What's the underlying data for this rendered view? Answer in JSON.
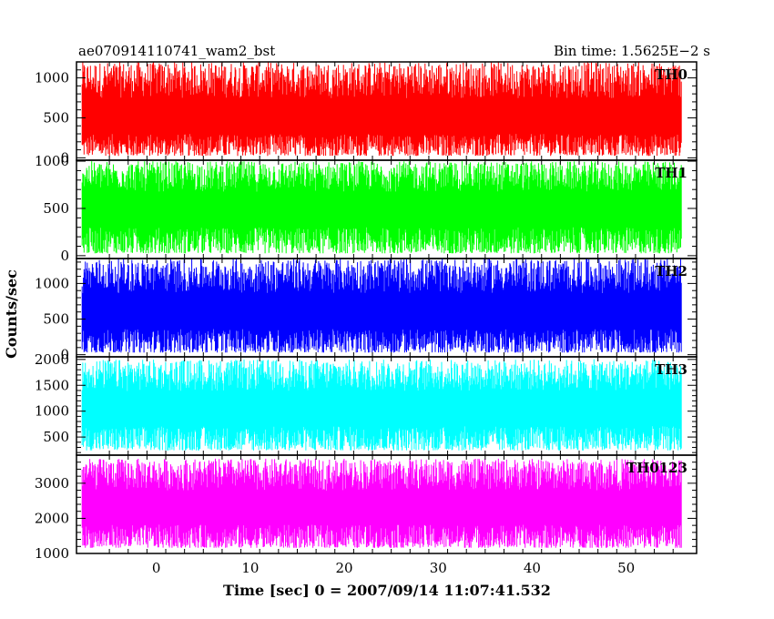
{
  "chart_data": {
    "type": "line",
    "title_left": "ae070914110741_wam2_bst",
    "title_right": "Bin time: 1.5625E−2 s",
    "xlabel": "Time [sec] 0 = 2007/09/14 11:07:41.532",
    "ylabel": "Counts/sec",
    "xlim": [
      -8.5,
      57.5
    ],
    "x_data_range": [
      -7.9,
      55.9
    ],
    "x_ticks": [
      0,
      10,
      20,
      30,
      40,
      50
    ],
    "x_tick_labels": [
      "0",
      "10",
      "20",
      "30",
      "40",
      "50"
    ],
    "grid": false,
    "series": [
      {
        "name": "TH0",
        "color": "#ff0000",
        "ylim": [
          -30,
          1200
        ],
        "y_ticks": [
          0,
          500,
          1000
        ],
        "y_tick_labels": [
          "0",
          "500",
          "1000"
        ],
        "typical_range": [
          0,
          1200
        ],
        "mean": 500
      },
      {
        "name": "TH1",
        "color": "#00ff00",
        "ylim": [
          -30,
          1010
        ],
        "y_ticks": [
          0,
          500,
          1000
        ],
        "y_tick_labels": [
          "0",
          "500",
          "1000"
        ],
        "typical_range": [
          0,
          1000
        ],
        "mean": 500
      },
      {
        "name": "TH2",
        "color": "#0000ff",
        "ylim": [
          -30,
          1350
        ],
        "y_ticks": [
          0,
          500,
          1000
        ],
        "y_tick_labels": [
          "0",
          "500",
          "1000"
        ],
        "typical_range": [
          0,
          1350
        ],
        "mean": 600
      },
      {
        "name": "TH3",
        "color": "#00ffff",
        "ylim": [
          150,
          2050
        ],
        "y_ticks": [
          500,
          1000,
          1500,
          2000
        ],
        "y_tick_labels": [
          "500",
          "1000",
          "1500",
          "2000"
        ],
        "typical_range": [
          200,
          2000
        ],
        "mean": 1050
      },
      {
        "name": "TH0123",
        "color": "#ff00ff",
        "ylim": [
          1000,
          3800
        ],
        "y_ticks": [
          1000,
          2000,
          3000
        ],
        "y_tick_labels": [
          "1000",
          "2000",
          "3000"
        ],
        "typical_range": [
          1100,
          3700
        ],
        "mean": 2300
      }
    ]
  }
}
